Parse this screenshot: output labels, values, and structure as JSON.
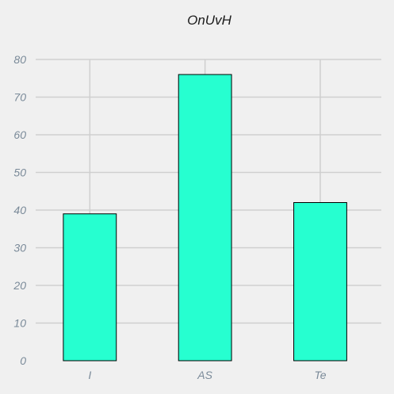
{
  "chart_data": {
    "type": "bar",
    "title": "OnUvH",
    "xlabel": "",
    "ylabel": "",
    "categories": [
      "I",
      "AS",
      "Te"
    ],
    "values": [
      39,
      76,
      42
    ],
    "ylim": [
      0,
      80
    ],
    "yticks": [
      0,
      10,
      20,
      30,
      40,
      50,
      60,
      70,
      80
    ],
    "grid": true,
    "bar_color": "#26ffd0",
    "background_color": "#f0f0f0"
  }
}
